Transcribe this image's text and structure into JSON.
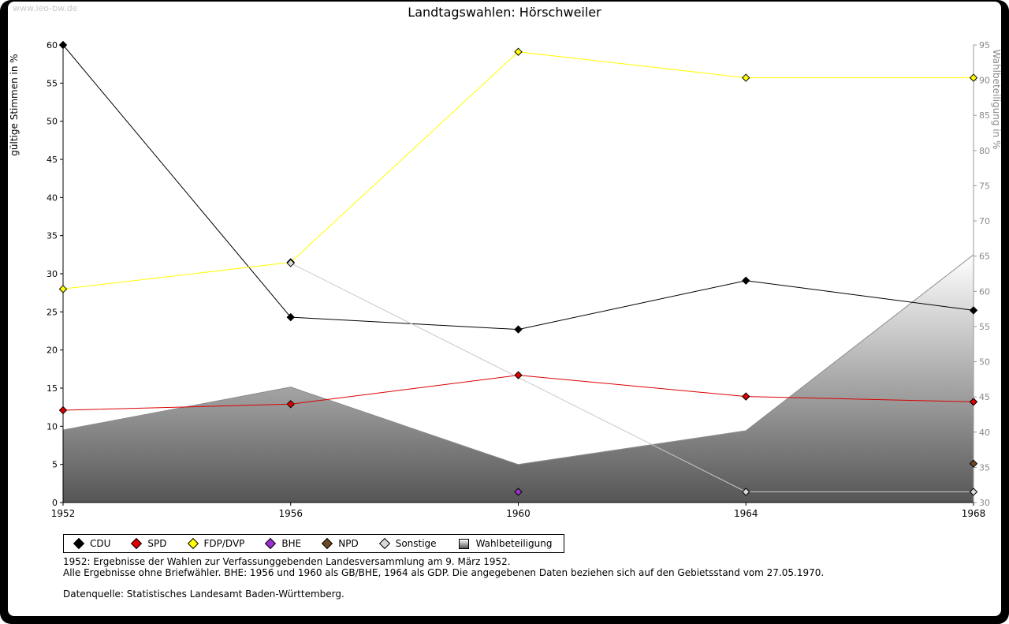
{
  "page": {
    "watermark": "www.leo-bw.de",
    "title": "Landtagswahlen: Hörschweiler"
  },
  "chart_data": {
    "type": "line",
    "categories": [
      "1952",
      "1956",
      "1960",
      "1964",
      "1968"
    ],
    "left_axis": {
      "label": "gültige Stimmen in %",
      "min": 0,
      "max": 60,
      "tick_step": 5
    },
    "right_axis": {
      "label": "Wahlbeteiligung in %",
      "min": 30,
      "max": 95,
      "tick_step": 5
    },
    "grid": "off",
    "legend_position": "bottom",
    "series": [
      {
        "name": "CDU",
        "id": "cdu",
        "color": "#000000",
        "axis": "left",
        "style": "line+diamond",
        "values": [
          60.0,
          24.3,
          22.7,
          29.1,
          25.2
        ]
      },
      {
        "name": "SPD",
        "id": "spd",
        "color": "#dd0000",
        "axis": "left",
        "style": "line+diamond",
        "values": [
          12.1,
          12.9,
          16.7,
          13.9,
          13.2
        ]
      },
      {
        "name": "FDP/DVP",
        "id": "fdp-dvp",
        "color": "#ffff00",
        "axis": "left",
        "style": "line+diamond",
        "values": [
          28.0,
          31.5,
          59.1,
          55.7,
          55.7
        ]
      },
      {
        "name": "BHE",
        "id": "bhe",
        "color": "#9932cc",
        "axis": "left",
        "style": "line+diamond",
        "values": [
          null,
          null,
          1.4,
          null,
          null
        ]
      },
      {
        "name": "NPD",
        "id": "npd",
        "color": "#6b4a24",
        "axis": "left",
        "style": "line+diamond",
        "values": [
          null,
          null,
          null,
          null,
          5.1
        ]
      },
      {
        "name": "Sonstige",
        "id": "sonstige",
        "color": "#c8c8c8",
        "axis": "left",
        "style": "line+diamond",
        "marker_fill": "#d9d9d9",
        "values": [
          null,
          31.4,
          null,
          1.4,
          1.4
        ]
      },
      {
        "name": "Wahlbeteiligung",
        "id": "wahlbeteiligung",
        "color": "#8c8c8c",
        "axis": "right",
        "style": "area",
        "fill_gradient": [
          "#ffffff",
          "#555555"
        ],
        "values": [
          40.3,
          46.4,
          35.4,
          40.2,
          65.2
        ]
      }
    ]
  },
  "legend": {
    "items": [
      {
        "id": "cdu",
        "label": "CDU",
        "color": "#000000",
        "swatch": "diamond"
      },
      {
        "id": "spd",
        "label": "SPD",
        "color": "#dd0000",
        "swatch": "diamond"
      },
      {
        "id": "fdp-dvp",
        "label": "FDP/DVP",
        "color": "#ffff00",
        "swatch": "diamond"
      },
      {
        "id": "bhe",
        "label": "BHE",
        "color": "#9932cc",
        "swatch": "diamond"
      },
      {
        "id": "npd",
        "label": "NPD",
        "color": "#6b4a24",
        "swatch": "diamond"
      },
      {
        "id": "sonstige",
        "label": "Sonstige",
        "color": "#d9d9d9",
        "swatch": "diamond"
      },
      {
        "id": "wahlbeteiligung",
        "label": "Wahlbeteiligung",
        "color": "#aaaaaa",
        "swatch": "square"
      }
    ]
  },
  "footer": {
    "line1": "1952: Ergebnisse der Wahlen zur Verfassunggebenden Landesversammlung am 9. März 1952.",
    "line2": "Alle Ergebnisse ohne Briefwähler. BHE: 1956 und 1960 als GB/BHE, 1964 als GDP. Die angegebenen Daten beziehen sich auf den Gebietsstand vom 27.05.1970.",
    "line3": "Datenquelle: Statistisches Landesamt Baden-Württemberg."
  }
}
